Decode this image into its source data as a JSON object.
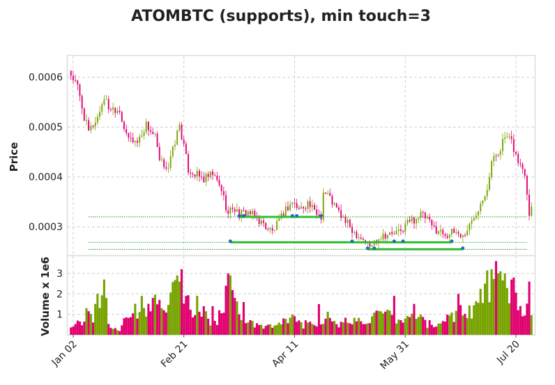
{
  "chart_data": {
    "type": "candlestick",
    "title": "ATOMBTC (supports), min touch=3",
    "price_panel": {
      "ylabel": "Price",
      "yticks": [
        "0.0003",
        "0.0004",
        "0.0005",
        "0.0006"
      ],
      "ytick_values": [
        0.0003,
        0.0004,
        0.0005,
        0.0006
      ],
      "ylim": [
        0.000243,
        0.000643
      ]
    },
    "volume_panel": {
      "ylabel": "Volume x 1e6",
      "yticks": [
        "1",
        "2",
        "3"
      ],
      "ytick_values": [
        1,
        2,
        3
      ],
      "ylim": [
        0,
        3.85
      ]
    },
    "x_ticks": [
      "Jan 02",
      "Feb 21",
      "Apr 11",
      "May 31",
      "Jul 20"
    ],
    "x_tick_days": [
      1,
      51,
      101,
      151,
      201
    ],
    "x_range_days": [
      -1.5,
      209.5
    ],
    "support_levels": [
      {
        "value": 0.00032,
        "x_start_day": 76,
        "x_end_day": 113,
        "touch_days": [
          76,
          78,
          100,
          102,
          113
        ]
      },
      {
        "value": 0.000269,
        "x_start_day": 72,
        "x_end_day": 172,
        "touch_days": [
          72,
          127,
          146,
          150,
          172
        ]
      },
      {
        "value": 0.000255,
        "x_start_day": 134,
        "x_end_day": 177,
        "touch_days": [
          134,
          137,
          177
        ]
      }
    ],
    "colors": {
      "up": "#77a300",
      "down": "#e0006f",
      "support_line": "#2ebd2e",
      "support_dashed": "#008800",
      "touch_marker": "#1f6fb5",
      "grid": "#cfcfcf",
      "frame": "#dddddd"
    },
    "price_keypoints": [
      [
        0,
        0.000605
      ],
      [
        3,
        0.00058
      ],
      [
        6,
        0.00052
      ],
      [
        8,
        0.00049
      ],
      [
        12,
        0.00052
      ],
      [
        15,
        0.00056
      ],
      [
        17,
        0.00054
      ],
      [
        22,
        0.000535
      ],
      [
        25,
        0.00048
      ],
      [
        30,
        0.00047
      ],
      [
        34,
        0.000505
      ],
      [
        38,
        0.00048
      ],
      [
        40,
        0.00043
      ],
      [
        44,
        0.00042
      ],
      [
        49,
        0.000505
      ],
      [
        51,
        0.00046
      ],
      [
        53,
        0.000415
      ],
      [
        60,
        0.000395
      ],
      [
        64,
        0.000405
      ],
      [
        68,
        0.000375
      ],
      [
        71,
        0.000325
      ],
      [
        73,
        0.00034
      ],
      [
        76,
        0.000325
      ],
      [
        80,
        0.00033
      ],
      [
        83,
        0.00032
      ],
      [
        87,
        0.000305
      ],
      [
        91,
        0.00029
      ],
      [
        94,
        0.00031
      ],
      [
        97,
        0.000335
      ],
      [
        100,
        0.00035
      ],
      [
        103,
        0.000335
      ],
      [
        107,
        0.000348
      ],
      [
        110,
        0.00033
      ],
      [
        113,
        0.000322
      ],
      [
        114,
        0.00037
      ],
      [
        116,
        0.000365
      ],
      [
        120,
        0.000335
      ],
      [
        124,
        0.00031
      ],
      [
        128,
        0.00029
      ],
      [
        132,
        0.000275
      ],
      [
        135,
        0.00026
      ],
      [
        138,
        0.000275
      ],
      [
        141,
        0.000285
      ],
      [
        145,
        0.000285
      ],
      [
        149,
        0.00029
      ],
      [
        152,
        0.00031
      ],
      [
        155,
        0.000315
      ],
      [
        158,
        0.000325
      ],
      [
        161,
        0.000315
      ],
      [
        163,
        0.0003
      ],
      [
        167,
        0.00029
      ],
      [
        170,
        0.000285
      ],
      [
        174,
        0.00029
      ],
      [
        177,
        0.00028
      ],
      [
        181,
        0.00031
      ],
      [
        185,
        0.00035
      ],
      [
        188,
        0.00038
      ],
      [
        190,
        0.00043
      ],
      [
        193,
        0.00045
      ],
      [
        196,
        0.00048
      ],
      [
        199,
        0.00047
      ],
      [
        202,
        0.00043
      ],
      [
        205,
        0.00041
      ],
      [
        207,
        0.00033
      ],
      [
        208,
        0.00034
      ]
    ],
    "volume_keypoints": [
      [
        0,
        0.5
      ],
      [
        5,
        0.7
      ],
      [
        10,
        1.4
      ],
      [
        13,
        2.1
      ],
      [
        17,
        0.4
      ],
      [
        22,
        0.3
      ],
      [
        26,
        1.2
      ],
      [
        32,
        1.0
      ],
      [
        36,
        1.8
      ],
      [
        40,
        1.1
      ],
      [
        45,
        1.6
      ],
      [
        49,
        2.9
      ],
      [
        52,
        1.8
      ],
      [
        57,
        1.0
      ],
      [
        62,
        0.8
      ],
      [
        66,
        0.6
      ],
      [
        70,
        2.0
      ],
      [
        73,
        2.6
      ],
      [
        76,
        1.0
      ],
      [
        80,
        0.6
      ],
      [
        85,
        0.4
      ],
      [
        90,
        0.4
      ],
      [
        95,
        0.5
      ],
      [
        100,
        0.9
      ],
      [
        105,
        0.5
      ],
      [
        112,
        0.6
      ],
      [
        115,
        1.0
      ],
      [
        120,
        0.4
      ],
      [
        125,
        0.7
      ],
      [
        130,
        0.7
      ],
      [
        135,
        0.8
      ],
      [
        140,
        0.9
      ],
      [
        145,
        0.9
      ],
      [
        150,
        0.6
      ],
      [
        155,
        1.2
      ],
      [
        160,
        0.6
      ],
      [
        165,
        0.4
      ],
      [
        170,
        0.8
      ],
      [
        175,
        1.2
      ],
      [
        180,
        1.2
      ],
      [
        184,
        1.5
      ],
      [
        188,
        2.4
      ],
      [
        192,
        3.2
      ],
      [
        196,
        2.0
      ],
      [
        200,
        2.2
      ],
      [
        203,
        1.4
      ],
      [
        206,
        1.1
      ],
      [
        208,
        0.8
      ]
    ],
    "volume_overrides": [
      [
        1,
        0.4
      ],
      [
        7,
        1.3
      ],
      [
        10,
        0.6
      ],
      [
        15,
        2.7
      ],
      [
        16,
        1.8
      ],
      [
        32,
        1.9
      ],
      [
        37,
        1.8
      ],
      [
        40,
        1.7
      ],
      [
        48,
        2.9
      ],
      [
        49,
        2.6
      ],
      [
        52,
        1.9
      ],
      [
        57,
        1.9
      ],
      [
        60,
        1.4
      ],
      [
        64,
        1.4
      ],
      [
        71,
        3.0
      ],
      [
        72,
        2.9
      ],
      [
        74,
        1.8
      ],
      [
        78,
        1.6
      ],
      [
        112,
        1.5
      ],
      [
        146,
        1.9
      ],
      [
        175,
        2.0
      ],
      [
        187,
        2.5
      ],
      [
        190,
        3.2
      ],
      [
        192,
        3.6
      ],
      [
        193,
        3.0
      ],
      [
        196,
        3.0
      ],
      [
        199,
        2.7
      ],
      [
        200,
        2.8
      ],
      [
        202,
        1.2
      ],
      [
        207,
        2.6
      ]
    ]
  }
}
